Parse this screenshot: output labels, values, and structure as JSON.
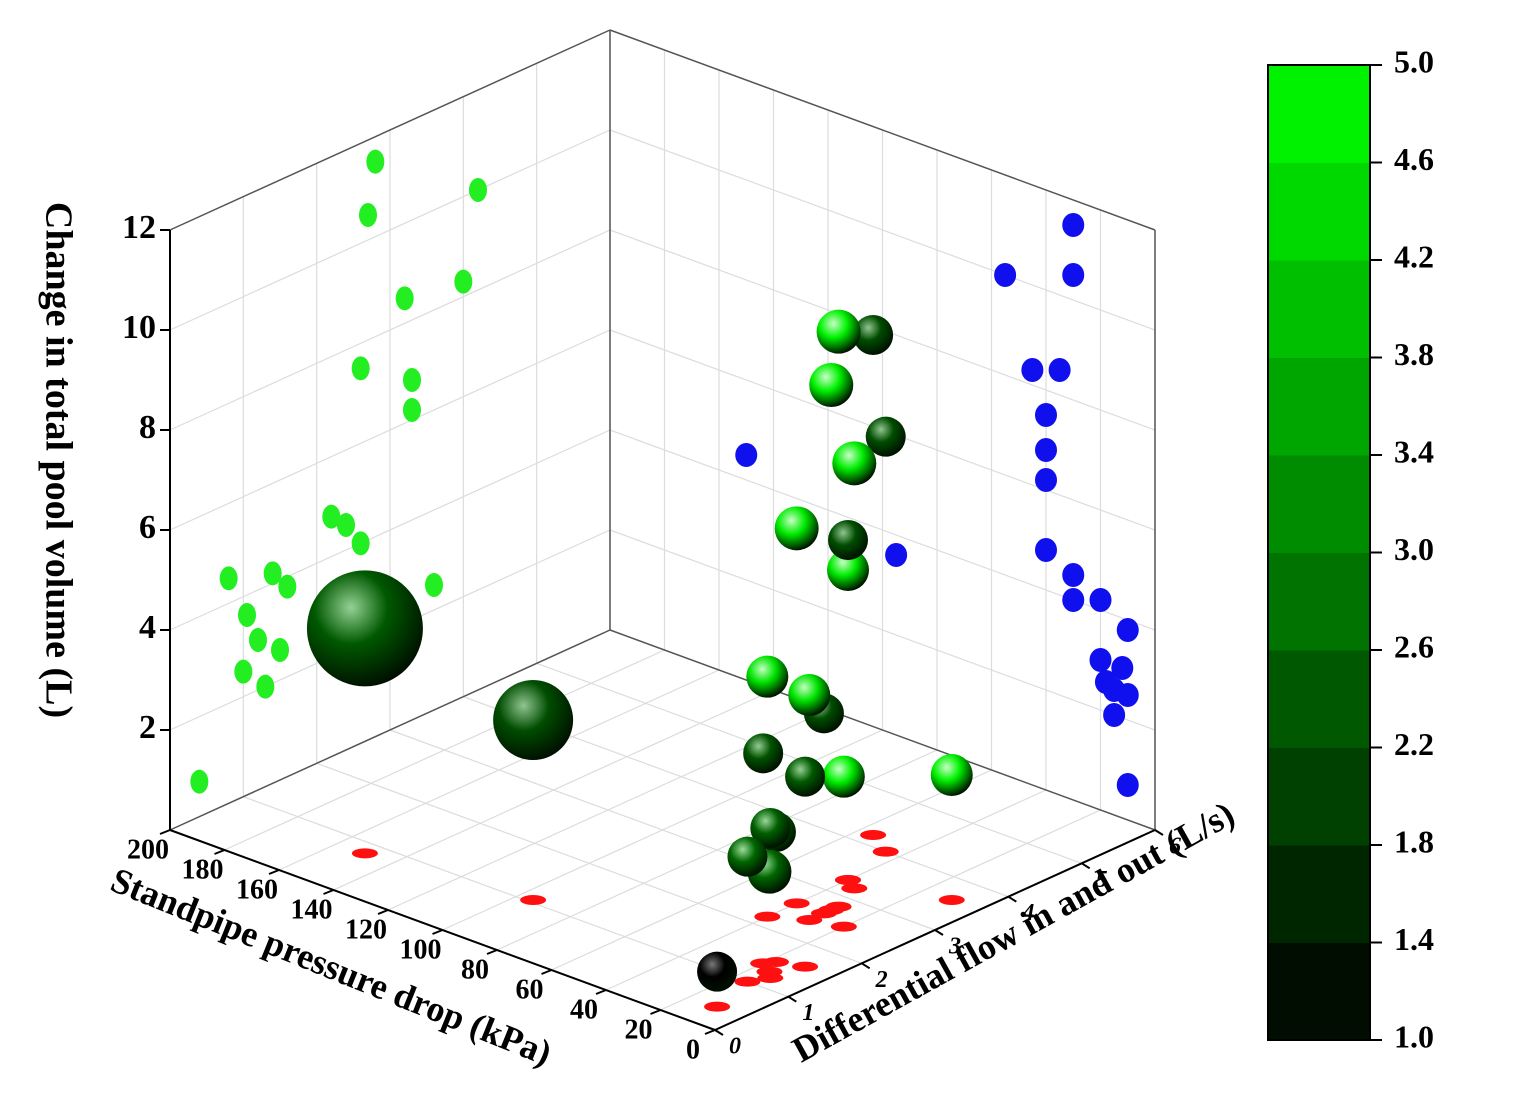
{
  "chart_data": {
    "type": "scatter3d",
    "xlabel": "Standpipe pressure drop (kPa)",
    "ylabel": "Differential flow in and out (L/s)",
    "zlabel": "Change in total pool volume (L)",
    "xlim": [
      0,
      200
    ],
    "xticks": [
      0,
      20,
      40,
      60,
      80,
      100,
      120,
      140,
      160,
      180,
      200
    ],
    "ylim": [
      0,
      6
    ],
    "yticks": [
      0,
      1,
      2,
      3,
      4,
      5,
      6
    ],
    "zlim": [
      0,
      12
    ],
    "zticks": [
      2,
      4,
      6,
      8,
      10,
      12
    ],
    "clim": [
      1,
      5
    ],
    "cticks": [
      {
        "value": 1,
        "label": "1.0"
      },
      1.4,
      1.8,
      2.2,
      2.6,
      {
        "value": 3,
        "label": "3.0"
      },
      3.4,
      3.8,
      4.2,
      4.6,
      {
        "value": 5,
        "label": "5.0"
      }
    ],
    "grid": true,
    "x": [
      150,
      95,
      10,
      15,
      15,
      12,
      18,
      10,
      20,
      30,
      30,
      35,
      40,
      40,
      40,
      30,
      20,
      10,
      55,
      45,
      40,
      30
    ],
    "y": [
      0.8,
      1.05,
      0.4,
      1.0,
      1.3,
      1.2,
      1.5,
      1.6,
      1.4,
      2.8,
      2.7,
      3.2,
      2.6,
      3.3,
      2.2,
      2.4,
      2.5,
      3.6,
      4.2,
      4.0,
      3.3,
      2.6
    ],
    "z": [
      4.5,
      3.6,
      0.7,
      2.5,
      2.0,
      3.0,
      2.6,
      3.8,
      4.2,
      11.5,
      10.5,
      8.5,
      7.5,
      6.2,
      4.8,
      4.5,
      3.0,
      2.5,
      10.0,
      8.3,
      6.8,
      4.0
    ],
    "color_values": [
      2.4,
      2.2,
      1.0,
      2.6,
      2.6,
      2.5,
      2.4,
      2.4,
      2.3,
      4.8,
      4.8,
      4.7,
      4.7,
      4.7,
      4.6,
      4.6,
      4.8,
      4.8,
      2.2,
      2.2,
      2.2,
      2.2
    ],
    "sizes": [
      58,
      40,
      20,
      20,
      22,
      20,
      20,
      20,
      20,
      22,
      22,
      22,
      22,
      21,
      21,
      21,
      21,
      21,
      20,
      20,
      20,
      20
    ]
  }
}
